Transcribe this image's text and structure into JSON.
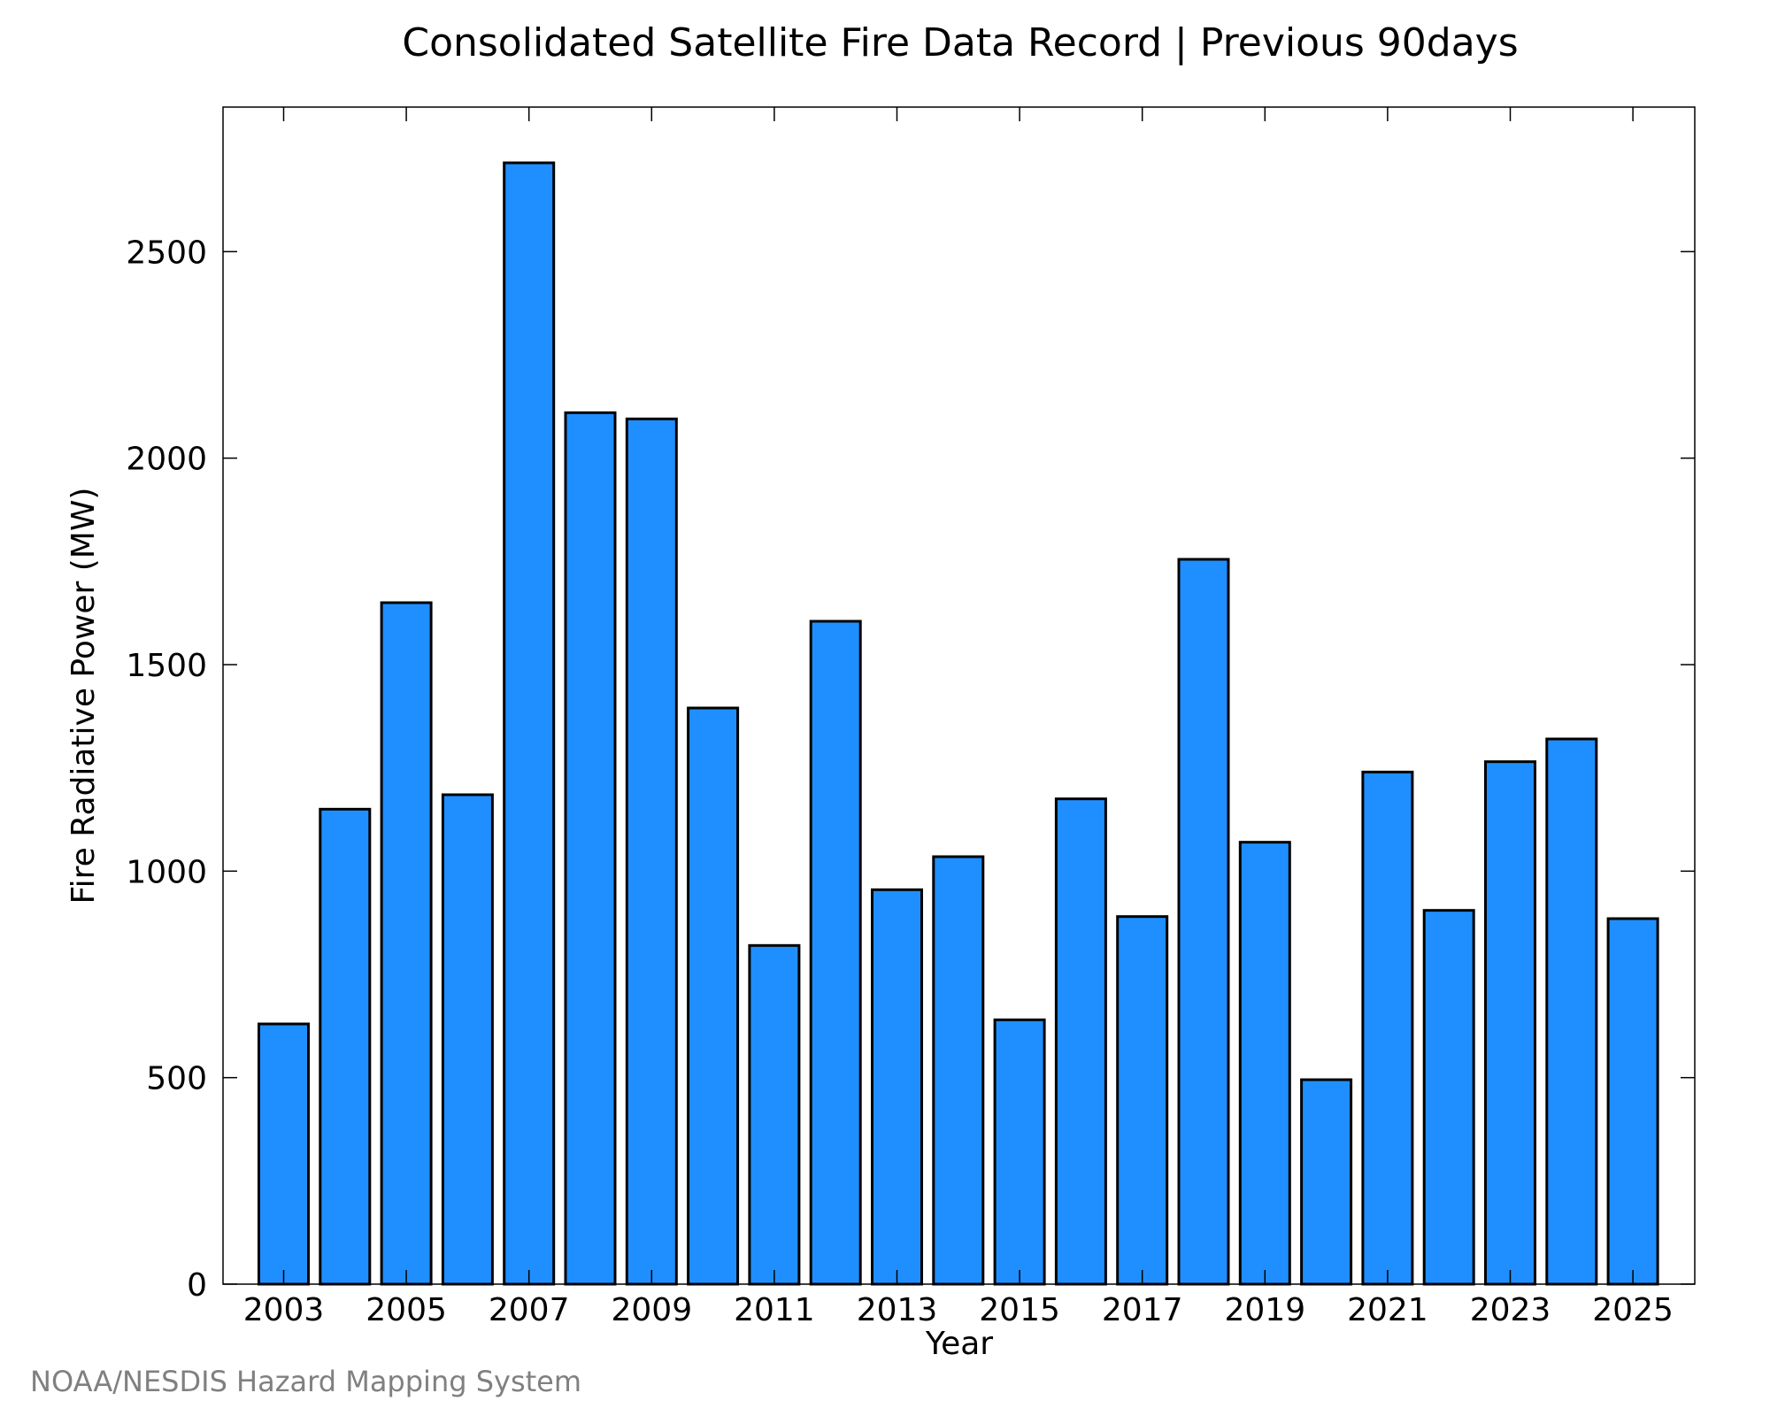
{
  "chart_data": {
    "type": "bar",
    "title": "Consolidated Satellite Fire Data Record | Previous 90days",
    "xlabel": "Year",
    "ylabel": "Fire Radiative Power (MW)",
    "source": "NOAA/NESDIS Hazard Mapping System",
    "categories": [
      "2003",
      "2004",
      "2005",
      "2006",
      "2007",
      "2008",
      "2009",
      "2010",
      "2011",
      "2012",
      "2013",
      "2014",
      "2015",
      "2016",
      "2017",
      "2018",
      "2019",
      "2020",
      "2021",
      "2022",
      "2023",
      "2024",
      "2025"
    ],
    "values": [
      630,
      1150,
      1650,
      1185,
      2715,
      2110,
      2095,
      1395,
      820,
      1605,
      955,
      1035,
      640,
      1175,
      890,
      1755,
      1070,
      495,
      1240,
      905,
      1265,
      1320,
      885
    ],
    "x_tick_labels": [
      "2003",
      "2005",
      "2007",
      "2009",
      "2011",
      "2013",
      "2015",
      "2017",
      "2019",
      "2021",
      "2023",
      "2025"
    ],
    "y_ticks": [
      0,
      500,
      1000,
      1500,
      2000,
      2500
    ],
    "ylim": [
      0,
      2850
    ],
    "grid": false,
    "bar_color": "#1f8fff",
    "bar_edge_color": "#000000",
    "source_color": "#808080"
  }
}
